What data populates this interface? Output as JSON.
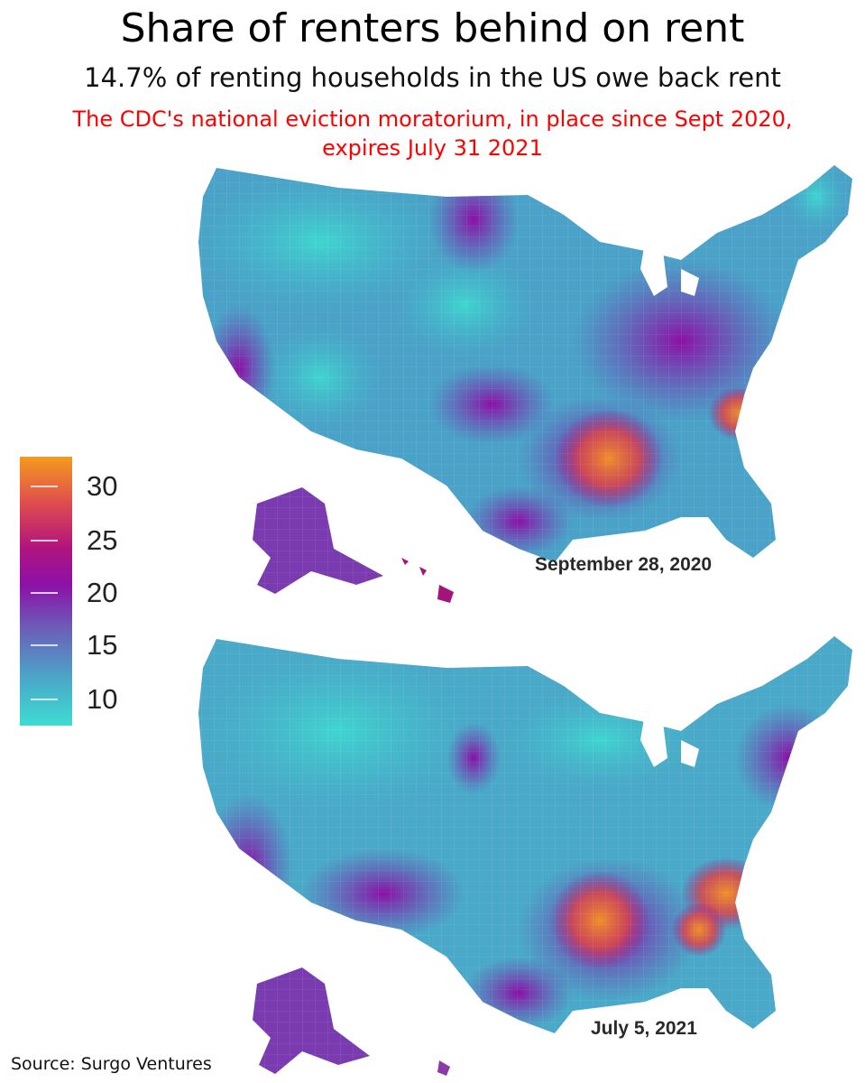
{
  "title": "Share of renters behind on rent",
  "subtitle": "14.7% of renting households in the US owe back rent",
  "note_line1": "The CDC's national eviction moratorium, in place since Sept 2020,",
  "note_line2": "expires July 31 2021",
  "legend": {
    "ticks": [
      "30",
      "25",
      "20",
      "15",
      "10"
    ],
    "colors": {
      "low": "#3ddcd2",
      "mid": "#8b12a8",
      "high": "#f59a1e"
    }
  },
  "maps": [
    {
      "date": "September 28, 2020"
    },
    {
      "date": "July 5, 2021"
    }
  ],
  "source": "Source: Surgo Ventures"
}
